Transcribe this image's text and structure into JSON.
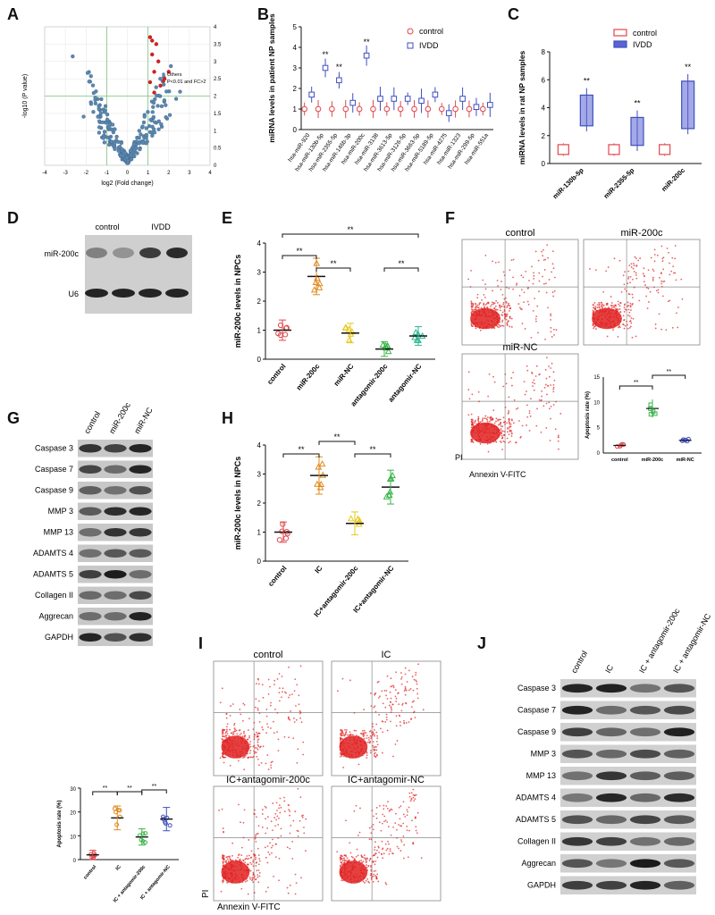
{
  "panels": {
    "A": "A",
    "B": "B",
    "C": "C",
    "D": "D",
    "E": "E",
    "F": "F",
    "G": "G",
    "H": "H",
    "I": "I",
    "J": "J"
  },
  "chart_data": [
    {
      "panel": "A",
      "type": "scatter",
      "xlabel": "log2 (Fold change)",
      "ylabel": "-log10 (P value)",
      "xlim": [
        -4,
        4
      ],
      "ylim": [
        0,
        4
      ],
      "xticks": [
        "-4",
        "-3",
        "-2",
        "-1",
        "0",
        "1",
        "2",
        "3",
        "4"
      ],
      "yticks": [
        "0",
        "0.5",
        "1",
        "1.5",
        "2",
        "2.5",
        "3",
        "3.5",
        "4"
      ],
      "legend": [
        {
          "name": "Others",
          "color": "#5b87b0"
        },
        {
          "name": "P<0.01 and FC>2",
          "color": "#cc2222"
        }
      ],
      "colors": {
        "others": "#5b87b0",
        "sig": "#cc2222",
        "guide": "#7cc37c"
      }
    },
    {
      "panel": "B",
      "type": "box",
      "ylabel": "miRNA levels in patient NP samples",
      "ylim": [
        0,
        5
      ],
      "yticks": [
        "0",
        "1",
        "2",
        "3",
        "4",
        "5"
      ],
      "legend": [
        {
          "name": "control",
          "color": "#e0474c",
          "marker": "circle"
        },
        {
          "name": "IVDD",
          "color": "#3d4fbf",
          "marker": "square"
        }
      ],
      "categories": [
        "hsa-miR-920",
        "hsa-miR-130b-5p",
        "hsa-miR-2355-5p",
        "hsa-miR-146b-3p",
        "hsa-miR-200c",
        "hsa-miR-3138",
        "hsa-miR-3613-5p",
        "hsa-miR-3126-5p",
        "hsa-miR-3663-5p",
        "hsa-miR-5189-5p",
        "hsa-miR-4275",
        "hsa-miR-1323",
        "hsa-miR-299-5p",
        "hsa-miR-551a"
      ],
      "series": [
        {
          "name": "control",
          "values": [
            1.0,
            1.0,
            1.0,
            1.0,
            1.0,
            1.0,
            1.0,
            1.0,
            1.0,
            1.0,
            1.0,
            1.0,
            1.0,
            1.0
          ]
        },
        {
          "name": "IVDD",
          "values": [
            1.7,
            3.0,
            2.4,
            1.3,
            3.6,
            1.5,
            1.5,
            1.5,
            1.4,
            1.7,
            0.8,
            1.5,
            1.1,
            1.2
          ]
        }
      ],
      "annotations": [
        "**",
        "**",
        "**"
      ]
    },
    {
      "panel": "C",
      "type": "box",
      "ylabel": "miRNA levels in rat NP samples",
      "ylim": [
        0,
        8
      ],
      "yticks": [
        "0",
        "2",
        "4",
        "6",
        "8"
      ],
      "legend": [
        {
          "name": "control",
          "color": "#e0474c"
        },
        {
          "name": "IVDD",
          "color": "#3d4fbf"
        }
      ],
      "categories": [
        "miR-130b-5p",
        "miR-2355-5p",
        "miR-200c"
      ],
      "series": [
        {
          "name": "control",
          "values": [
            1.0,
            1.0,
            1.0
          ]
        },
        {
          "name": "IVDD",
          "values": [
            3.8,
            2.3,
            4.2
          ]
        }
      ],
      "annotations": [
        "**",
        "**",
        "**"
      ]
    },
    {
      "panel": "E",
      "type": "scatter",
      "ylabel": "miR-200c levels in NPCs",
      "ylim": [
        0,
        4
      ],
      "yticks": [
        "0",
        "1",
        "2",
        "3",
        "4"
      ],
      "categories": [
        "control",
        "miR-200c",
        "miR-NC",
        "antagomir-200c",
        "antagomir-NC"
      ],
      "values": [
        1.0,
        2.85,
        0.9,
        0.35,
        0.8
      ],
      "colors": [
        "#e0474c",
        "#e08a1e",
        "#e6c91e",
        "#39b54a",
        "#2bb58f"
      ],
      "annotations": [
        "**",
        "**",
        "**",
        "**"
      ]
    },
    {
      "panel": "F-inset",
      "type": "scatter",
      "ylabel": "Apoptosis rate (%)",
      "ylim": [
        0,
        15
      ],
      "yticks": [
        "0",
        "5",
        "10",
        "15"
      ],
      "categories": [
        "control",
        "miR-200c",
        "miR-NC"
      ],
      "values": [
        1.5,
        8.8,
        2.5
      ],
      "colors": [
        "#e0474c",
        "#39b54a",
        "#3d4fbf"
      ],
      "annotations": [
        "**",
        "**"
      ]
    },
    {
      "panel": "H",
      "type": "scatter",
      "ylabel": "miR-200c levels in NPCs",
      "ylim": [
        0,
        4
      ],
      "yticks": [
        "0",
        "1",
        "2",
        "3",
        "4"
      ],
      "categories": [
        "control",
        "IC",
        "IC+antagomir-200c",
        "IC+antagomir-NC"
      ],
      "values": [
        1.0,
        2.95,
        1.3,
        2.55
      ],
      "colors": [
        "#e0474c",
        "#e08a1e",
        "#e6c91e",
        "#39b54a"
      ],
      "annotations": [
        "**",
        "**",
        "**"
      ]
    },
    {
      "panel": "G-inset",
      "type": "scatter",
      "ylabel": "Apoptosis rate (%)",
      "ylim": [
        0,
        30
      ],
      "yticks": [
        "0",
        "10",
        "20",
        "30"
      ],
      "categories": [
        "control",
        "IC",
        "IC + antagomir-200c",
        "IC + antagomir-NC"
      ],
      "values": [
        2.0,
        17.5,
        9.5,
        17.0
      ],
      "colors": [
        "#e0474c",
        "#e08a1e",
        "#39b54a",
        "#3d4fbf"
      ],
      "annotations": [
        "**",
        "**",
        "**"
      ]
    }
  ],
  "panel_D": {
    "lanes": [
      "control",
      "IVDD"
    ],
    "rows": [
      "miR-200c",
      "U6"
    ]
  },
  "panel_F": {
    "plots": [
      "control",
      "miR-200c",
      "miR-NC"
    ],
    "ylabel": "PI",
    "xlabel": "Annexin V-FITC"
  },
  "panel_G": {
    "lanes": [
      "control",
      "miR-200c",
      "miR-NC"
    ],
    "rows": [
      "Caspase 3",
      "Caspase 7",
      "Caspase 9",
      "MMP 3",
      "MMP 13",
      "ADAMTS 4",
      "ADAMTS 5",
      "Collagen II",
      "Aggrecan",
      "GAPDH"
    ]
  },
  "panel_I": {
    "plots": [
      "control",
      "IC",
      "IC+antagomir-200c",
      "IC+antagomir-NC"
    ],
    "ylabel": "PI",
    "xlabel": "Annexin V-FITC"
  },
  "panel_J": {
    "lanes": [
      "control",
      "IC",
      "IC + antagomir-200c",
      "IC + antagomir-NC"
    ],
    "rows": [
      "Caspase 3",
      "Caspase 7",
      "Caspase 9",
      "MMP 3",
      "MMP 13",
      "ADAMTS 4",
      "ADAMTS 5",
      "Collagen II",
      "Aggrecan",
      "GAPDH"
    ]
  }
}
